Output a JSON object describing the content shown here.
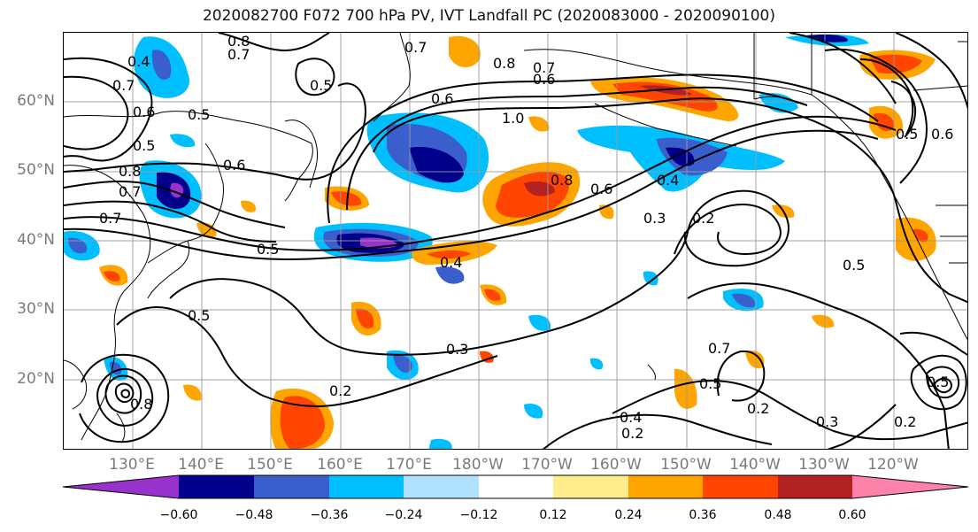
{
  "title": "2020082700 F072 700 hPa PV, IVT Landfall PC (2020083000 - 2020090100)",
  "lat_labels": [
    "60°N",
    "50°N",
    "40°N",
    "30°N",
    "20°N"
  ],
  "lon_labels": [
    "130°E",
    "140°E",
    "150°E",
    "160°E",
    "170°E",
    "180°W",
    "170°W",
    "160°W",
    "150°W",
    "140°W",
    "130°W",
    "120°W"
  ],
  "colorbar": {
    "colors": [
      "#9932cc",
      "#00008b",
      "#3a5fcd",
      "#00bfff",
      "#b0e2ff",
      "#ffffff",
      "#ffec8b",
      "#ffa500",
      "#ff4500",
      "#b22222",
      "#ff82ab"
    ],
    "ticks": [
      "−0.60",
      "−0.48",
      "−0.36",
      "−0.24",
      "−0.12",
      "0.12",
      "0.24",
      "0.36",
      "0.48",
      "0.60"
    ]
  },
  "contour_labels": [
    "0.8",
    "0.7",
    "0.4",
    "0.7",
    "0.6",
    "0.5",
    "0.8",
    "0.7",
    "0.6",
    "1.0",
    "0.6",
    "0.5",
    "0.8",
    "0.7",
    "0.7",
    "0.5",
    "0.6",
    "0.4",
    "0.7",
    "0.5",
    "0.8",
    "0.6",
    "0.4",
    "0.3",
    "0.2",
    "0.5",
    "0.3",
    "0.7",
    "0.2",
    "0.5",
    "0.4",
    "0.2",
    "0.2",
    "0.3",
    "0.2",
    "0.5",
    "0.8",
    "0.5",
    "0.5",
    "0.6"
  ]
}
